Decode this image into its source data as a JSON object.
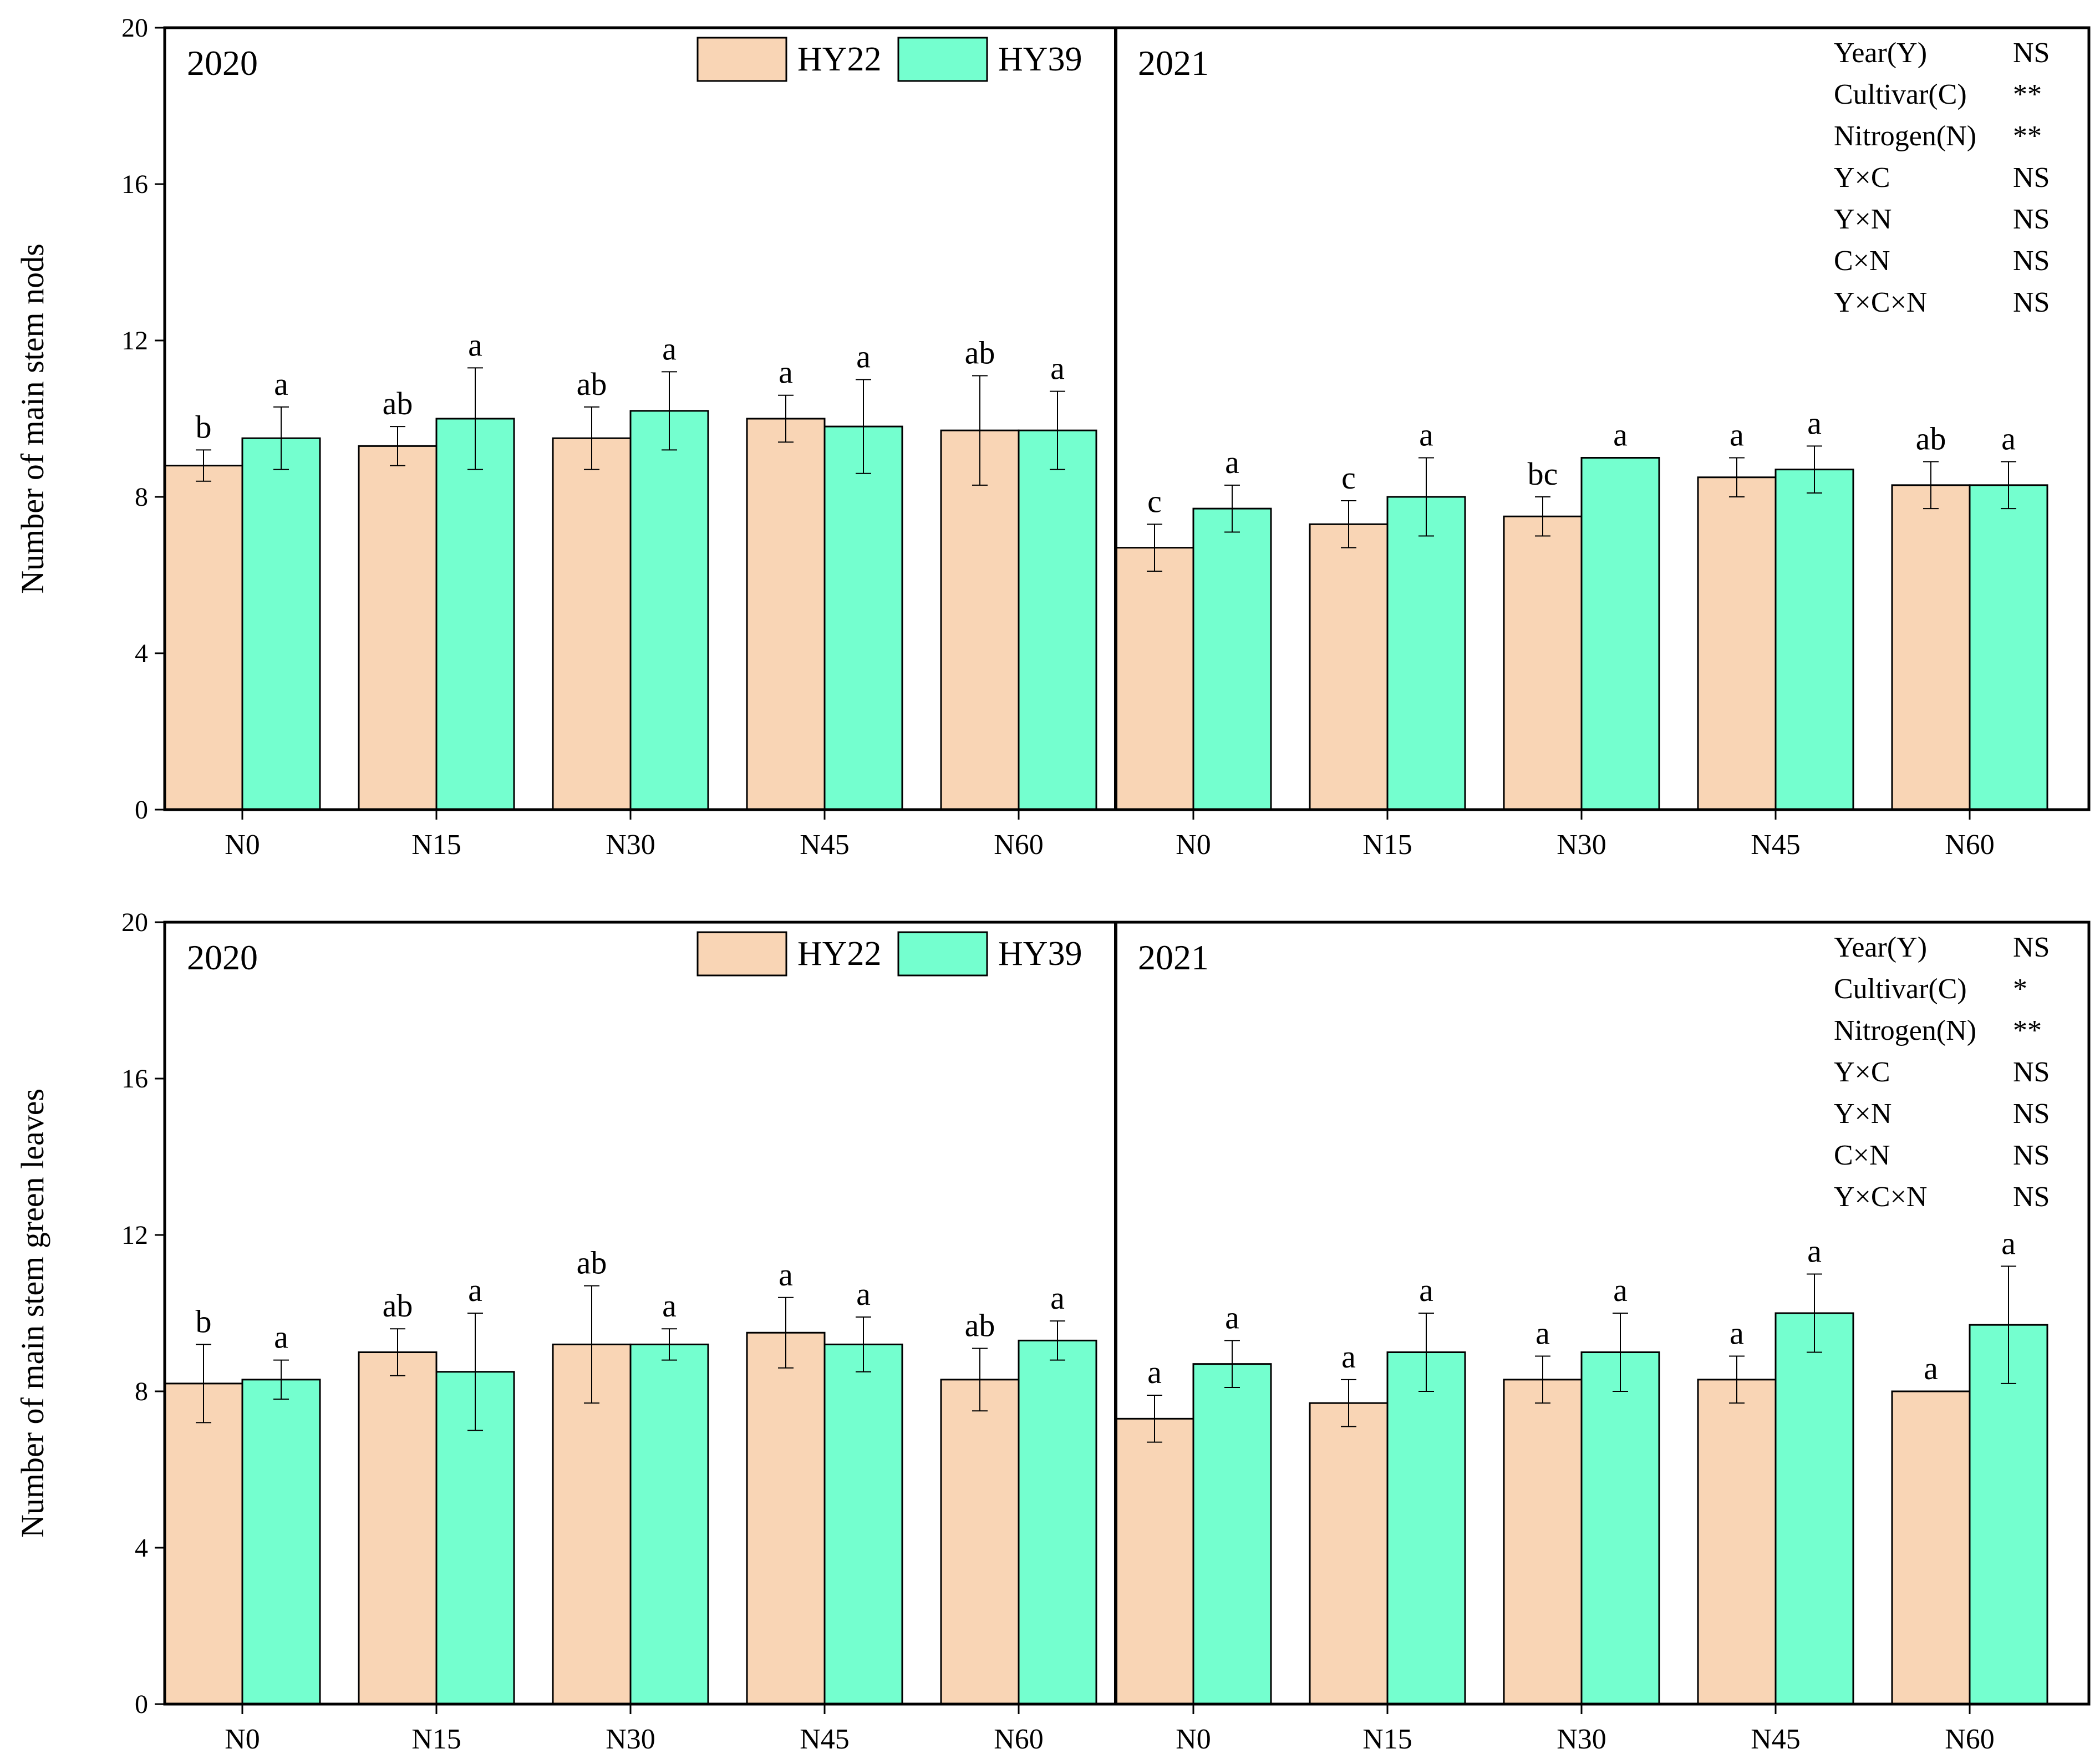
{
  "chart_data": [
    {
      "type": "bar",
      "ylabel": "Number of main stem nods",
      "ylim": [
        0,
        20
      ],
      "yticks": [
        0,
        4,
        8,
        12,
        16,
        20
      ],
      "categories": [
        "N0",
        "N15",
        "N30",
        "N45",
        "N60"
      ],
      "legend": [
        "HY22",
        "HY39"
      ],
      "colors": {
        "HY22": "#f9d5b5",
        "HY39": "#74ffcf"
      },
      "years": [
        {
          "year": "2020",
          "series": [
            {
              "name": "HY22",
              "values": [
                8.8,
                9.3,
                9.5,
                10.0,
                9.7
              ],
              "errors": [
                0.4,
                0.5,
                0.8,
                0.6,
                1.4
              ],
              "letters": [
                "b",
                "ab",
                "ab",
                "a",
                "ab"
              ]
            },
            {
              "name": "HY39",
              "values": [
                9.5,
                10.0,
                10.2,
                9.8,
                9.7
              ],
              "errors": [
                0.8,
                1.3,
                1.0,
                1.2,
                1.0
              ],
              "letters": [
                "a",
                "a",
                "a",
                "a",
                "a"
              ]
            }
          ]
        },
        {
          "year": "2021",
          "series": [
            {
              "name": "HY22",
              "values": [
                6.7,
                7.3,
                7.5,
                8.5,
                8.3
              ],
              "errors": [
                0.6,
                0.6,
                0.5,
                0.5,
                0.6
              ],
              "letters": [
                "c",
                "c",
                "bc",
                "a",
                "ab"
              ]
            },
            {
              "name": "HY39",
              "values": [
                7.7,
                8.0,
                9.0,
                8.7,
                8.3
              ],
              "errors": [
                0.6,
                1.0,
                0.0,
                0.6,
                0.6
              ],
              "letters": [
                "a",
                "a",
                "a",
                "a",
                "a"
              ]
            }
          ]
        }
      ],
      "significance": [
        {
          "term": "Year(Y)",
          "value": "NS"
        },
        {
          "term": "Cultivar(C)",
          "value": "**"
        },
        {
          "term": "Nitrogen(N)",
          "value": "**"
        },
        {
          "term": "Y×C",
          "value": "NS"
        },
        {
          "term": "Y×N",
          "value": "NS"
        },
        {
          "term": "C×N",
          "value": "NS"
        },
        {
          "term": "Y×C×N",
          "value": "NS"
        }
      ]
    },
    {
      "type": "bar",
      "ylabel": "Number of main stem green leaves",
      "ylim": [
        0,
        20
      ],
      "yticks": [
        0,
        4,
        8,
        12,
        16,
        20
      ],
      "categories": [
        "N0",
        "N15",
        "N30",
        "N45",
        "N60"
      ],
      "legend": [
        "HY22",
        "HY39"
      ],
      "colors": {
        "HY22": "#f9d5b5",
        "HY39": "#74ffcf"
      },
      "years": [
        {
          "year": "2020",
          "series": [
            {
              "name": "HY22",
              "values": [
                8.2,
                9.0,
                9.2,
                9.5,
                8.3
              ],
              "errors": [
                1.0,
                0.6,
                1.5,
                0.9,
                0.8
              ],
              "letters": [
                "b",
                "ab",
                "ab",
                "a",
                "ab"
              ]
            },
            {
              "name": "HY39",
              "values": [
                8.3,
                8.5,
                9.2,
                9.2,
                9.3
              ],
              "errors": [
                0.5,
                1.5,
                0.4,
                0.7,
                0.5
              ],
              "letters": [
                "a",
                "a",
                "a",
                "a",
                "a"
              ]
            }
          ]
        },
        {
          "year": "2021",
          "series": [
            {
              "name": "HY22",
              "values": [
                7.3,
                7.7,
                8.3,
                8.3,
                8.0
              ],
              "errors": [
                0.6,
                0.6,
                0.6,
                0.6,
                0.0
              ],
              "letters": [
                "a",
                "a",
                "a",
                "a",
                "a"
              ]
            },
            {
              "name": "HY39",
              "values": [
                8.7,
                9.0,
                9.0,
                10.0,
                9.7
              ],
              "errors": [
                0.6,
                1.0,
                1.0,
                1.0,
                1.5
              ],
              "letters": [
                "a",
                "a",
                "a",
                "a",
                "a"
              ]
            }
          ]
        }
      ],
      "significance": [
        {
          "term": "Year(Y)",
          "value": "NS"
        },
        {
          "term": "Cultivar(C)",
          "value": "*"
        },
        {
          "term": "Nitrogen(N)",
          "value": "**"
        },
        {
          "term": "Y×C",
          "value": "NS"
        },
        {
          "term": "Y×N",
          "value": "NS"
        },
        {
          "term": "C×N",
          "value": "NS"
        },
        {
          "term": "Y×C×N",
          "value": "NS"
        }
      ]
    }
  ]
}
